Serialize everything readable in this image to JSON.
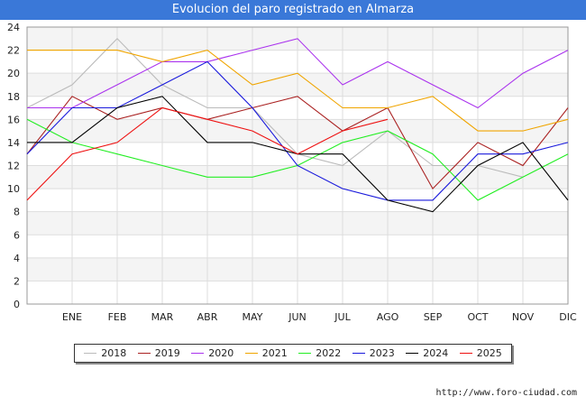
{
  "header": {
    "title": "Evolucion del paro registrado en Almarza"
  },
  "footer": {
    "url": "http://www.foro-ciudad.com"
  },
  "chart_data": {
    "type": "line",
    "title": "Evolucion del paro registrado en Almarza",
    "categories": [
      "",
      "ENE",
      "FEB",
      "MAR",
      "ABR",
      "MAY",
      "JUN",
      "JUL",
      "AGO",
      "SEP",
      "OCT",
      "NOV",
      "DIC"
    ],
    "ylim": [
      0,
      24
    ],
    "yticks": [
      0,
      2,
      4,
      6,
      8,
      10,
      12,
      14,
      16,
      18,
      20,
      22,
      24
    ],
    "grid": true,
    "legend_position": "bottom",
    "series": [
      {
        "name": "2018",
        "color": "#bbbbbb",
        "values": [
          17,
          19,
          23,
          19,
          17,
          17,
          13,
          12,
          15,
          12,
          12,
          11,
          null
        ]
      },
      {
        "name": "2019",
        "color": "#aa2222",
        "values": [
          13,
          18,
          16,
          17,
          16,
          17,
          18,
          15,
          17,
          10,
          14,
          12,
          17
        ]
      },
      {
        "name": "2020",
        "color": "#aa33ee",
        "values": [
          17,
          17,
          19,
          21,
          21,
          22,
          23,
          19,
          21,
          19,
          17,
          20,
          22
        ]
      },
      {
        "name": "2021",
        "color": "#f0a500",
        "values": [
          22,
          22,
          22,
          21,
          22,
          19,
          20,
          17,
          17,
          18,
          15,
          15,
          16
        ]
      },
      {
        "name": "2022",
        "color": "#22ee22",
        "values": [
          16,
          14,
          13,
          12,
          11,
          11,
          12,
          14,
          15,
          13,
          9,
          11,
          13
        ]
      },
      {
        "name": "2023",
        "color": "#1a1adc",
        "values": [
          13,
          17,
          17,
          19,
          21,
          17,
          12,
          10,
          9,
          9,
          13,
          13,
          14
        ]
      },
      {
        "name": "2024",
        "color": "#000000",
        "values": [
          14,
          14,
          17,
          18,
          14,
          14,
          13,
          13,
          9,
          8,
          12,
          14,
          9
        ]
      },
      {
        "name": "2025",
        "color": "#ee1111",
        "values": [
          9,
          13,
          14,
          17,
          16,
          15,
          13,
          15,
          16,
          null,
          null,
          null,
          null
        ]
      }
    ]
  }
}
